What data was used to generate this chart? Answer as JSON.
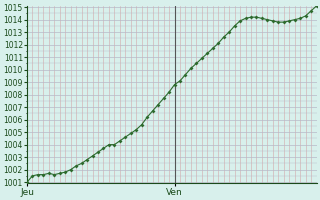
{
  "y_values": [
    1001.0,
    1001.5,
    1001.6,
    1001.6,
    1001.7,
    1001.6,
    1001.7,
    1001.8,
    1002.0,
    1002.3,
    1002.5,
    1002.8,
    1003.1,
    1003.4,
    1003.7,
    1004.0,
    1004.0,
    1004.3,
    1004.6,
    1004.9,
    1005.2,
    1005.6,
    1006.2,
    1006.7,
    1007.2,
    1007.7,
    1008.2,
    1008.8,
    1009.1,
    1009.6,
    1010.1,
    1010.5,
    1010.9,
    1011.3,
    1011.7,
    1012.1,
    1012.6,
    1013.0,
    1013.5,
    1013.9,
    1014.1,
    1014.2,
    1014.2,
    1014.1,
    1014.0,
    1013.9,
    1013.8,
    1013.8,
    1013.9,
    1014.0,
    1014.1,
    1014.3,
    1014.7,
    1015.1
  ],
  "n_points": 54,
  "ven_index": 27,
  "x_tick_labels": [
    "Jeu",
    "Ven"
  ],
  "y_min": 1001,
  "y_max": 1015,
  "line_color": "#2d6a2d",
  "marker_color": "#2d6a2d",
  "bg_color": "#d8f0ec",
  "grid_major_color": "#b8b8c8",
  "grid_minor_color": "#e8c8c8",
  "axis_color": "#1a4a1a",
  "vline_color": "#555555",
  "tick_fontsize": 5.5,
  "xlabel_fontsize": 6.5
}
